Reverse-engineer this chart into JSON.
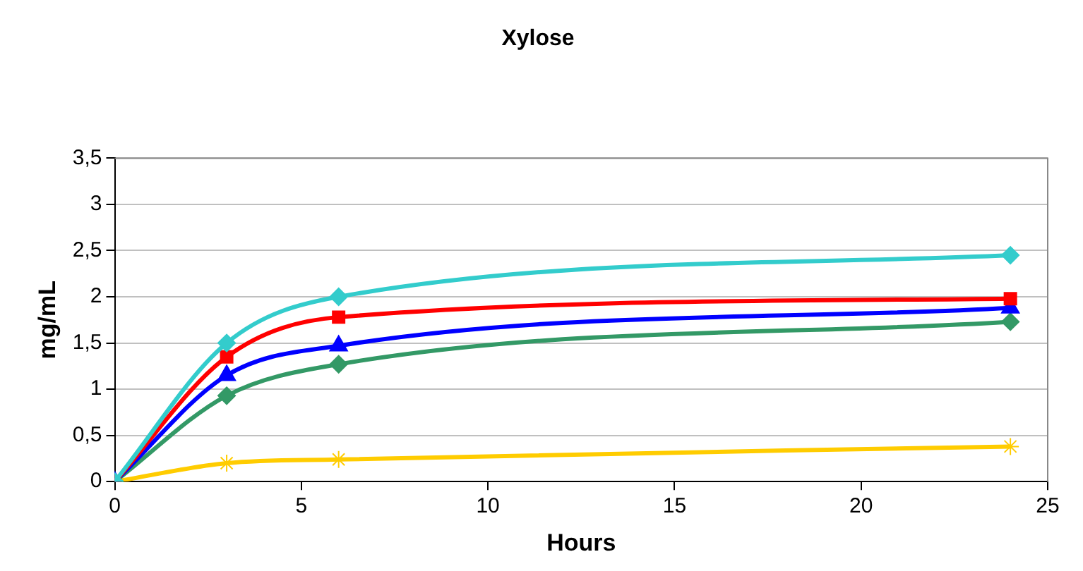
{
  "chart_data": {
    "type": "line",
    "title": "Xylose",
    "xlabel": "Hours",
    "ylabel": "mg/mL",
    "x": [
      0,
      3,
      6,
      24
    ],
    "series": [
      {
        "color": "#33cccc",
        "marker": "diamond",
        "values": [
          0,
          1.5,
          2.0,
          2.45
        ]
      },
      {
        "color": "#ff0000",
        "marker": "square",
        "values": [
          0,
          1.35,
          1.78,
          1.98
        ]
      },
      {
        "color": "#0000ff",
        "marker": "triangle",
        "values": [
          0,
          1.15,
          1.47,
          1.88
        ]
      },
      {
        "color": "#339966",
        "marker": "diamond",
        "values": [
          0,
          0.93,
          1.27,
          1.73
        ]
      },
      {
        "color": "#ffcc00",
        "marker": "cross",
        "values": [
          0,
          0.2,
          0.24,
          0.38
        ]
      }
    ],
    "xlim": [
      0,
      25
    ],
    "xticks": [
      0,
      5,
      10,
      15,
      20,
      25
    ],
    "ylim": [
      0,
      3.5
    ],
    "yticks": [
      0,
      {
        "value": 0.5,
        "label": "0,5"
      },
      1,
      {
        "value": 1.5,
        "label": "1,5"
      },
      2,
      {
        "value": 2.5,
        "label": "2,5"
      },
      3,
      {
        "value": 3.5,
        "label": "3,5"
      }
    ],
    "grid": "y",
    "legend": false,
    "line_style": "solid"
  }
}
